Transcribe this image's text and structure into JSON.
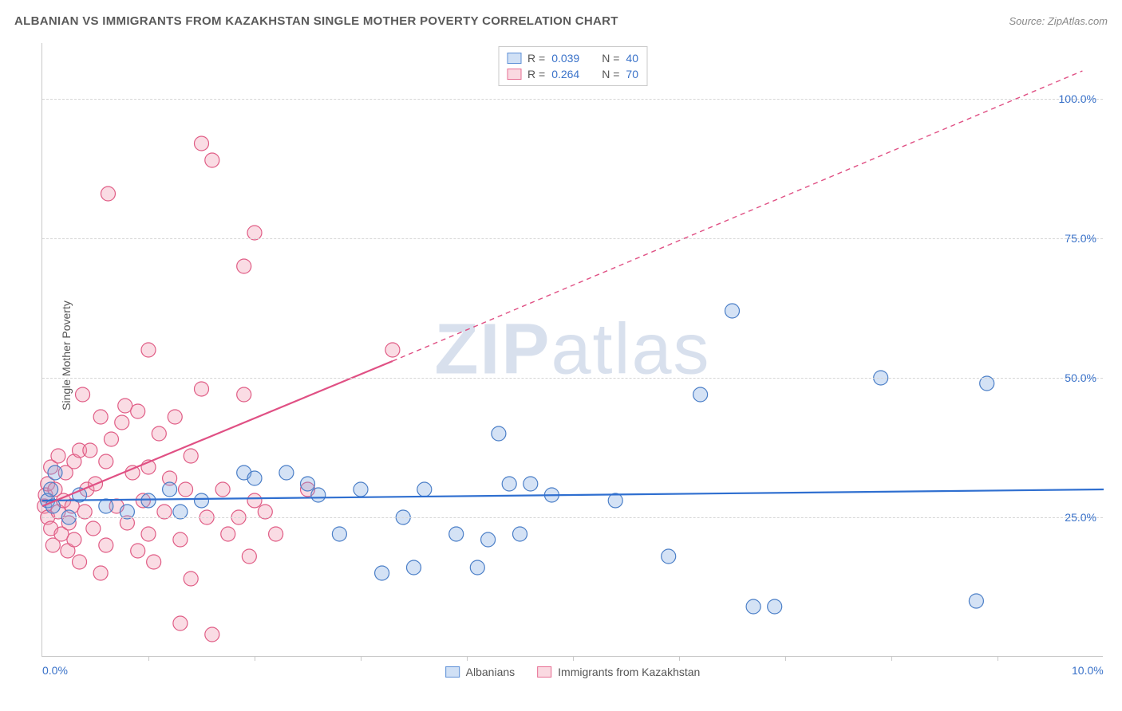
{
  "chart": {
    "title": "ALBANIAN VS IMMIGRANTS FROM KAZAKHSTAN SINGLE MOTHER POVERTY CORRELATION CHART",
    "source": "Source: ZipAtlas.com",
    "watermark_a": "ZIP",
    "watermark_b": "atlas",
    "y_axis_title": "Single Mother Poverty",
    "type": "scatter",
    "background_color": "#ffffff",
    "grid_color": "#d6d6d6",
    "axis_color": "#c8c8c8",
    "xlim": [
      0,
      10
    ],
    "ylim": [
      0,
      110
    ],
    "x_ticks": [
      {
        "v": 0,
        "label": "0.0%"
      },
      {
        "v": 10,
        "label": "10.0%"
      }
    ],
    "x_minor_ticks": [
      1,
      2,
      3,
      4,
      5,
      6,
      7,
      8,
      9
    ],
    "y_ticks": [
      {
        "v": 25,
        "label": "25.0%"
      },
      {
        "v": 50,
        "label": "50.0%"
      },
      {
        "v": 75,
        "label": "75.0%"
      },
      {
        "v": 100,
        "label": "100.0%"
      }
    ],
    "marker_radius": 9,
    "series": {
      "blue": {
        "name": "Albanians",
        "color_fill": "#78a5e1",
        "color_stroke": "#4a7ec7",
        "R": "0.039",
        "N": "40",
        "trend": {
          "x1": 0,
          "y1": 28,
          "x2": 10,
          "y2": 30,
          "color": "#2f6fd0"
        },
        "points": [
          [
            0.05,
            28
          ],
          [
            0.08,
            30
          ],
          [
            0.12,
            33
          ],
          [
            0.1,
            27
          ],
          [
            0.25,
            25
          ],
          [
            0.35,
            29
          ],
          [
            0.6,
            27
          ],
          [
            0.8,
            26
          ],
          [
            1.0,
            28
          ],
          [
            1.2,
            30
          ],
          [
            1.3,
            26
          ],
          [
            1.5,
            28
          ],
          [
            1.9,
            33
          ],
          [
            2.0,
            32
          ],
          [
            2.3,
            33
          ],
          [
            2.5,
            31
          ],
          [
            2.6,
            29
          ],
          [
            2.8,
            22
          ],
          [
            3.0,
            30
          ],
          [
            3.2,
            15
          ],
          [
            3.4,
            25
          ],
          [
            3.5,
            16
          ],
          [
            3.6,
            30
          ],
          [
            3.9,
            22
          ],
          [
            4.1,
            16
          ],
          [
            4.2,
            21
          ],
          [
            4.3,
            40
          ],
          [
            4.4,
            31
          ],
          [
            4.5,
            22
          ],
          [
            4.6,
            31
          ],
          [
            4.8,
            29
          ],
          [
            5.4,
            28
          ],
          [
            5.9,
            18
          ],
          [
            6.2,
            47
          ],
          [
            6.5,
            62
          ],
          [
            6.7,
            9
          ],
          [
            6.9,
            9
          ],
          [
            7.9,
            50
          ],
          [
            8.9,
            49
          ],
          [
            8.8,
            10
          ]
        ]
      },
      "pink": {
        "name": "Immigrants from Kazakhstan",
        "color_fill": "#f091aa",
        "color_stroke": "#e05c85",
        "R": "0.264",
        "N": "70",
        "trend_solid": {
          "x1": 0,
          "y1": 27,
          "x2": 3.3,
          "y2": 53,
          "color": "#e05084"
        },
        "trend_dash": {
          "x1": 3.3,
          "y1": 53,
          "x2": 9.8,
          "y2": 105,
          "color": "#e05084"
        },
        "points": [
          [
            0.02,
            27
          ],
          [
            0.03,
            29
          ],
          [
            0.05,
            25
          ],
          [
            0.05,
            31
          ],
          [
            0.08,
            23
          ],
          [
            0.08,
            34
          ],
          [
            0.1,
            20
          ],
          [
            0.12,
            30
          ],
          [
            0.15,
            26
          ],
          [
            0.15,
            36
          ],
          [
            0.18,
            22
          ],
          [
            0.2,
            28
          ],
          [
            0.22,
            33
          ],
          [
            0.24,
            19
          ],
          [
            0.25,
            24
          ],
          [
            0.28,
            27
          ],
          [
            0.3,
            35
          ],
          [
            0.3,
            21
          ],
          [
            0.35,
            37
          ],
          [
            0.35,
            17
          ],
          [
            0.38,
            47
          ],
          [
            0.4,
            26
          ],
          [
            0.42,
            30
          ],
          [
            0.45,
            37
          ],
          [
            0.48,
            23
          ],
          [
            0.5,
            31
          ],
          [
            0.55,
            15
          ],
          [
            0.55,
            43
          ],
          [
            0.6,
            20
          ],
          [
            0.6,
            35
          ],
          [
            0.62,
            83
          ],
          [
            0.65,
            39
          ],
          [
            0.7,
            27
          ],
          [
            0.75,
            42
          ],
          [
            0.78,
            45
          ],
          [
            0.8,
            24
          ],
          [
            0.85,
            33
          ],
          [
            0.9,
            19
          ],
          [
            0.9,
            44
          ],
          [
            0.95,
            28
          ],
          [
            1.0,
            34
          ],
          [
            1.0,
            22
          ],
          [
            1.0,
            55
          ],
          [
            1.05,
            17
          ],
          [
            1.1,
            40
          ],
          [
            1.15,
            26
          ],
          [
            1.2,
            32
          ],
          [
            1.25,
            43
          ],
          [
            1.3,
            21
          ],
          [
            1.3,
            6
          ],
          [
            1.35,
            30
          ],
          [
            1.4,
            36
          ],
          [
            1.4,
            14
          ],
          [
            1.5,
            48
          ],
          [
            1.5,
            92
          ],
          [
            1.55,
            25
          ],
          [
            1.6,
            89
          ],
          [
            1.6,
            4
          ],
          [
            1.7,
            30
          ],
          [
            1.75,
            22
          ],
          [
            1.85,
            25
          ],
          [
            1.9,
            70
          ],
          [
            1.9,
            47
          ],
          [
            1.95,
            18
          ],
          [
            2.0,
            76
          ],
          [
            2.0,
            28
          ],
          [
            2.1,
            26
          ],
          [
            2.2,
            22
          ],
          [
            2.5,
            30
          ],
          [
            3.3,
            55
          ]
        ]
      }
    }
  }
}
